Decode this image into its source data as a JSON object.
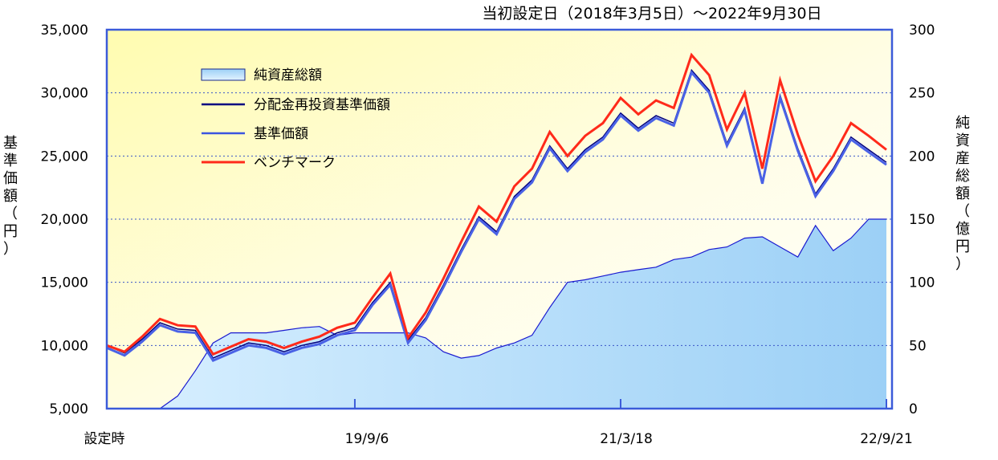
{
  "chart_data": {
    "type": "line",
    "title": "当初設定日（2018年3月5日）～2022年9月30日",
    "ylabel_left": "基準価額（円）",
    "ylabel_right": "純資産総額（億円）",
    "ylim_left": [
      5000,
      35000
    ],
    "yticks_left": [
      "5,000",
      "10,000",
      "15,000",
      "20,000",
      "25,000",
      "30,000",
      "35,000"
    ],
    "ylim_right": [
      0,
      300
    ],
    "yticks_right": [
      "0",
      "50",
      "100",
      "150",
      "200",
      "250",
      "300"
    ],
    "xticks": [
      "設定時",
      "19/9/6",
      "21/3/18",
      "22/9/21"
    ],
    "grid": true,
    "legend_position": "top-left",
    "x": [
      "2018-03",
      "2018-04",
      "2018-05",
      "2018-07",
      "2018-08",
      "2018-10",
      "2018-11",
      "2018-12",
      "2019-01",
      "2019-02",
      "2019-04",
      "2019-05",
      "2019-06",
      "2019-08",
      "2019-09",
      "2019-10",
      "2019-12",
      "2020-01",
      "2020-02",
      "2020-03",
      "2020-04",
      "2020-05",
      "2020-07",
      "2020-08",
      "2020-09",
      "2020-10",
      "2020-11",
      "2021-01",
      "2021-02",
      "2021-03",
      "2021-05",
      "2021-06",
      "2021-08",
      "2021-09",
      "2021-10",
      "2021-11",
      "2022-01",
      "2022-02",
      "2022-03",
      "2022-04",
      "2022-05",
      "2022-06",
      "2022-07",
      "2022-08",
      "2022-09"
    ],
    "series": [
      {
        "name": "純資産総額",
        "axis": "right",
        "color": "#bfe3ff",
        "values": [
          0,
          0,
          0,
          0,
          10,
          30,
          52,
          60,
          60,
          60,
          62,
          64,
          65,
          58,
          60,
          60,
          60,
          60,
          56,
          45,
          40,
          42,
          48,
          52,
          58,
          80,
          100,
          102,
          105,
          108,
          110,
          112,
          118,
          120,
          126,
          128,
          135,
          136,
          128,
          120,
          145,
          125,
          135,
          150,
          150
        ]
      },
      {
        "name": "分配金再投資基準価額",
        "axis": "left",
        "color": "#000080",
        "values": [
          10000,
          9400,
          10500,
          11800,
          11300,
          11200,
          9000,
          9600,
          10200,
          10000,
          9500,
          10000,
          10300,
          11000,
          11400,
          13400,
          15000,
          10400,
          12200,
          14800,
          17600,
          20200,
          19000,
          21800,
          23100,
          25800,
          24000,
          25500,
          26500,
          28400,
          27200,
          28200,
          27600,
          31800,
          30200,
          26000,
          28800,
          23000,
          29800,
          25600,
          22000,
          24000,
          26500,
          25500,
          24500
        ]
      },
      {
        "name": "基準価額",
        "axis": "left",
        "color": "#4a62e6",
        "values": [
          10000,
          9400,
          10500,
          11800,
          11300,
          11200,
          9000,
          9600,
          10200,
          10000,
          9500,
          10000,
          10300,
          11000,
          11400,
          13400,
          15000,
          10400,
          12200,
          14800,
          17600,
          20200,
          19000,
          21800,
          23100,
          25800,
          24000,
          25500,
          26500,
          28400,
          27200,
          28200,
          27600,
          31800,
          30200,
          26000,
          28800,
          23000,
          29800,
          25600,
          22000,
          24000,
          26500,
          25500,
          24500
        ]
      },
      {
        "name": "ベンチマーク",
        "axis": "left",
        "color": "#ff2a1a",
        "values": [
          10000,
          9500,
          10700,
          12100,
          11600,
          11500,
          9300,
          9900,
          10500,
          10300,
          9800,
          10300,
          10700,
          11400,
          11800,
          13800,
          15700,
          10600,
          12600,
          15300,
          18200,
          21000,
          19800,
          22600,
          24000,
          26900,
          25000,
          26600,
          27600,
          29600,
          28300,
          29400,
          28800,
          33000,
          31400,
          27100,
          30000,
          24000,
          31000,
          26700,
          23000,
          25000,
          27600,
          26600,
          25500
        ]
      }
    ]
  }
}
